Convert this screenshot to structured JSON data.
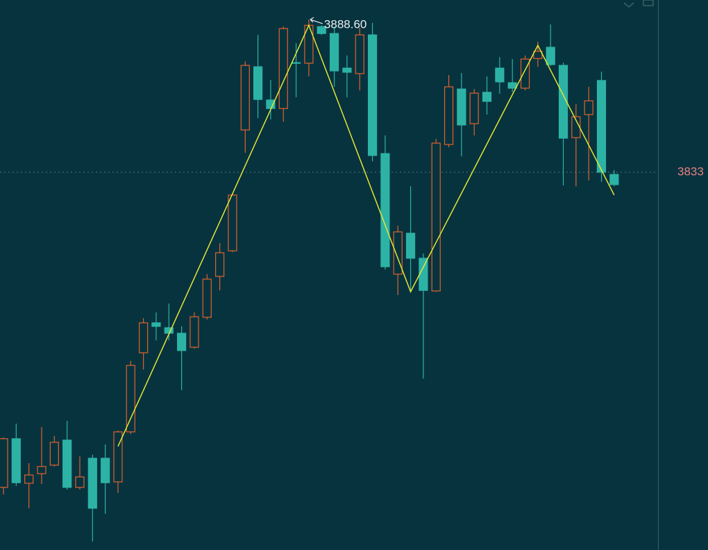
{
  "chart_data": {
    "type": "candlestick",
    "up_color": "#e0622a",
    "down_color": "#2db3a5",
    "ylim": [
      3695.5,
      3895.7
    ],
    "open": [
      3718.3,
      3736.0,
      3719.8,
      3723.3,
      3726.4,
      3735.5,
      3718.3,
      3728.9,
      3728.9,
      3720.3,
      3738.5,
      3767.3,
      3778.2,
      3776.4,
      3774.4,
      3769.3,
      3780.2,
      3795.1,
      3804.4,
      3848.4,
      3871.4,
      3859.3,
      3856.2,
      3872.9,
      3872.7,
      3886.0,
      3883.5,
      3870.9,
      3868.9,
      3883.0,
      3839.8,
      3795.9,
      3810.8,
      3801.7,
      3789.8,
      3843.1,
      3863.3,
      3850.7,
      3862.1,
      3870.9,
      3865.6,
      3863.6,
      3874.4,
      3878.5,
      3871.9,
      3845.6,
      3854.0,
      3866.4,
      3832.2
    ],
    "high": [
      3736.5,
      3741.5,
      3727.1,
      3740.3,
      3737.0,
      3742.5,
      3729.6,
      3730.2,
      3733.9,
      3739.0,
      3764.3,
      3779.9,
      3782.0,
      3785.2,
      3776.9,
      3782.0,
      3795.9,
      3807.2,
      3825.4,
      3873.4,
      3883.0,
      3866.6,
      3886.1,
      3880.0,
      3888.6,
      3886.5,
      3886.0,
      3875.5,
      3885.6,
      3887.4,
      3846.4,
      3813.5,
      3827.9,
      3803.4,
      3845.1,
      3868.4,
      3869.1,
      3863.3,
      3867.9,
      3874.9,
      3874.2,
      3875.5,
      3880.5,
      3886.8,
      3872.9,
      3857.8,
      3864.1,
      3869.6,
      3833.8
    ],
    "low": [
      3715.7,
      3718.8,
      3710.7,
      3719.5,
      3725.9,
      3717.5,
      3717.5,
      3698.6,
      3708.7,
      3716.3,
      3737.7,
      3761.2,
      3771.8,
      3771.8,
      3753.7,
      3768.8,
      3779.4,
      3790.0,
      3803.9,
      3840.1,
      3852.7,
      3852.2,
      3851.4,
      3860.3,
      3867.9,
      3883.0,
      3864.1,
      3860.3,
      3862.8,
      3837.0,
      3797.6,
      3788.3,
      3789.5,
      3757.9,
      3789.5,
      3842.1,
      3838.8,
      3846.4,
      3854.0,
      3861.6,
      3862.3,
      3862.8,
      3871.4,
      3871.7,
      3828.2,
      3827.9,
      3830.0,
      3829.5,
      3827.9
    ],
    "close": [
      3736.0,
      3720.0,
      3722.8,
      3725.9,
      3734.7,
      3718.3,
      3722.1,
      3710.7,
      3720.0,
      3738.5,
      3762.7,
      3778.2,
      3776.9,
      3774.4,
      3768.1,
      3780.4,
      3794.1,
      3803.7,
      3824.7,
      3871.9,
      3859.5,
      3856.2,
      3885.3,
      3872.7,
      3886.5,
      3883.5,
      3869.9,
      3869.4,
      3883.0,
      3839.1,
      3798.6,
      3811.3,
      3801.7,
      3790.0,
      3843.6,
      3864.1,
      3850.2,
      3861.8,
      3858.8,
      3865.9,
      3863.6,
      3874.2,
      3877.0,
      3872.2,
      3845.4,
      3853.2,
      3859.0,
      3833.0,
      3828.5
    ],
    "price_line": {
      "value": 3833,
      "color": "#e8807e"
    },
    "high_label": {
      "value": 3888.6,
      "label": "3888.60"
    },
    "trend_line": {
      "x": [
        9,
        24,
        32,
        42,
        48
      ],
      "values": [
        3733.2,
        3886.5,
        3789.5,
        3879.2,
        3824.7
      ],
      "color": "#e6e632"
    }
  }
}
